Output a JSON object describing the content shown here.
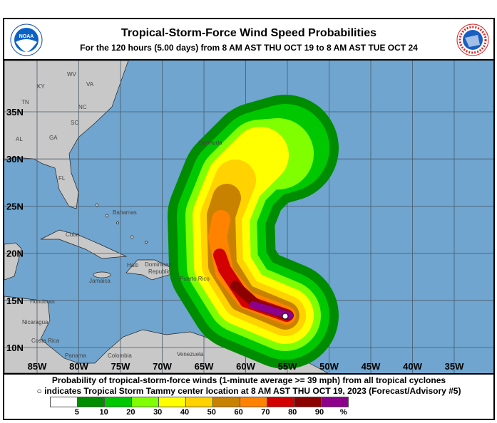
{
  "header": {
    "title": "Tropical-Storm-Force Wind Speed Probabilities",
    "subtitle": "For the 120 hours (5.00 days) from 8 AM AST THU OCT 19 to 8 AM AST TUE OCT 24",
    "left_logo": "NOAA",
    "right_logo": "NATIONAL WEATHER SERVICE"
  },
  "map": {
    "lat_labels": [
      "35N",
      "30N",
      "25N",
      "20N",
      "15N",
      "10N"
    ],
    "lon_labels": [
      "85W",
      "80W",
      "75W",
      "70W",
      "65W",
      "60W",
      "55W",
      "50W",
      "45W",
      "40W",
      "35W"
    ],
    "place_labels": {
      "wv": "WV",
      "ky": "KY",
      "va": "VA",
      "tn": "TN",
      "nc": "NC",
      "sc": "SC",
      "al": "AL",
      "ga": "GA",
      "fl": "FL",
      "bahamas": "Bahamas",
      "cuba": "Cuba",
      "haiti": "Haiti",
      "dominican": "Dominican",
      "republic": "Republic",
      "puerto_rico": "Puerto Rico",
      "jamaica": "Jamaica",
      "honduras": "Honduras",
      "nicaragua": "Nicaragua",
      "costa_rica": "Costa Rica",
      "panama": "Panama",
      "colombia": "Colombia",
      "venezuela": "Venezuela",
      "bermuda": "Bermuda"
    },
    "colors": {
      "ocean": "#6fa5cf",
      "land": "#c8c8c8",
      "grid": "#4a5a6a"
    },
    "storm_center": "Tropical Storm Tammy"
  },
  "caption": {
    "line1": "Probability of tropical-storm-force winds (1-minute average >= 39 mph) from all tropical cyclones",
    "line2": "○ indicates Tropical Storm Tammy center location at 8 AM AST THU OCT 19, 2023 (Forecast/Advisory #5)"
  },
  "legend": {
    "colors": [
      "#ffffff",
      "#008c00",
      "#00c800",
      "#80ff00",
      "#ffff00",
      "#ffd200",
      "#c88200",
      "#ff8200",
      "#d20000",
      "#8c0000",
      "#8c008c"
    ],
    "labels": [
      "5",
      "10",
      "20",
      "30",
      "40",
      "50",
      "60",
      "70",
      "80",
      "90",
      "%"
    ]
  }
}
